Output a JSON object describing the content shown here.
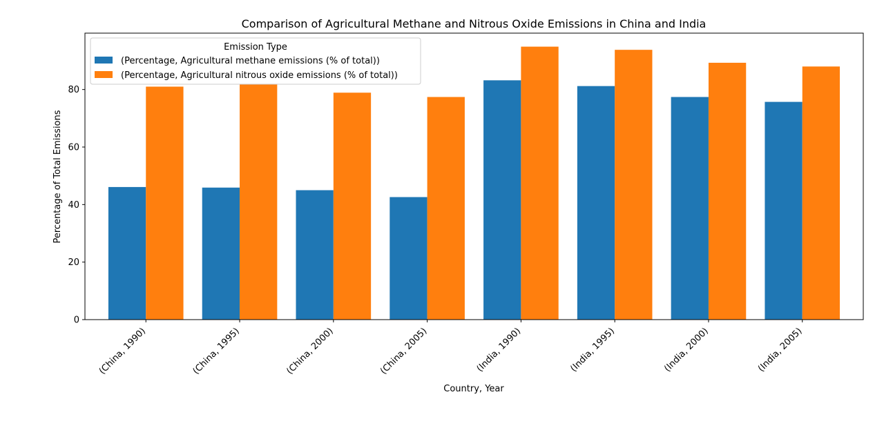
{
  "chart_data": {
    "type": "bar",
    "title": "Comparison of Agricultural Methane and Nitrous Oxide Emissions in China and India",
    "xlabel": "Country, Year",
    "ylabel": "Percentage of Total Emissions",
    "categories": [
      "(China, 1990)",
      "(China, 1995)",
      "(China, 2000)",
      "(China, 2005)",
      "(India, 1990)",
      "(India, 1995)",
      "(India, 2000)",
      "(India, 2005)"
    ],
    "series": [
      {
        "name": "(Percentage, Agricultural methane emissions (% of total))",
        "color": "#1f77b4",
        "values": [
          46.1,
          45.9,
          45.0,
          42.6,
          83.2,
          81.2,
          77.4,
          75.7
        ]
      },
      {
        "name": "(Percentage, Agricultural nitrous oxide emissions (% of total))",
        "color": "#ff7f0e",
        "values": [
          81.0,
          82.0,
          78.9,
          77.4,
          94.9,
          93.8,
          89.3,
          88.0
        ]
      }
    ],
    "ylim": [
      0,
      99.6
    ],
    "yticks": [
      0,
      20,
      40,
      60,
      80
    ],
    "legend": {
      "title": "Emission Type",
      "position": "top-left"
    },
    "grid": false
  }
}
